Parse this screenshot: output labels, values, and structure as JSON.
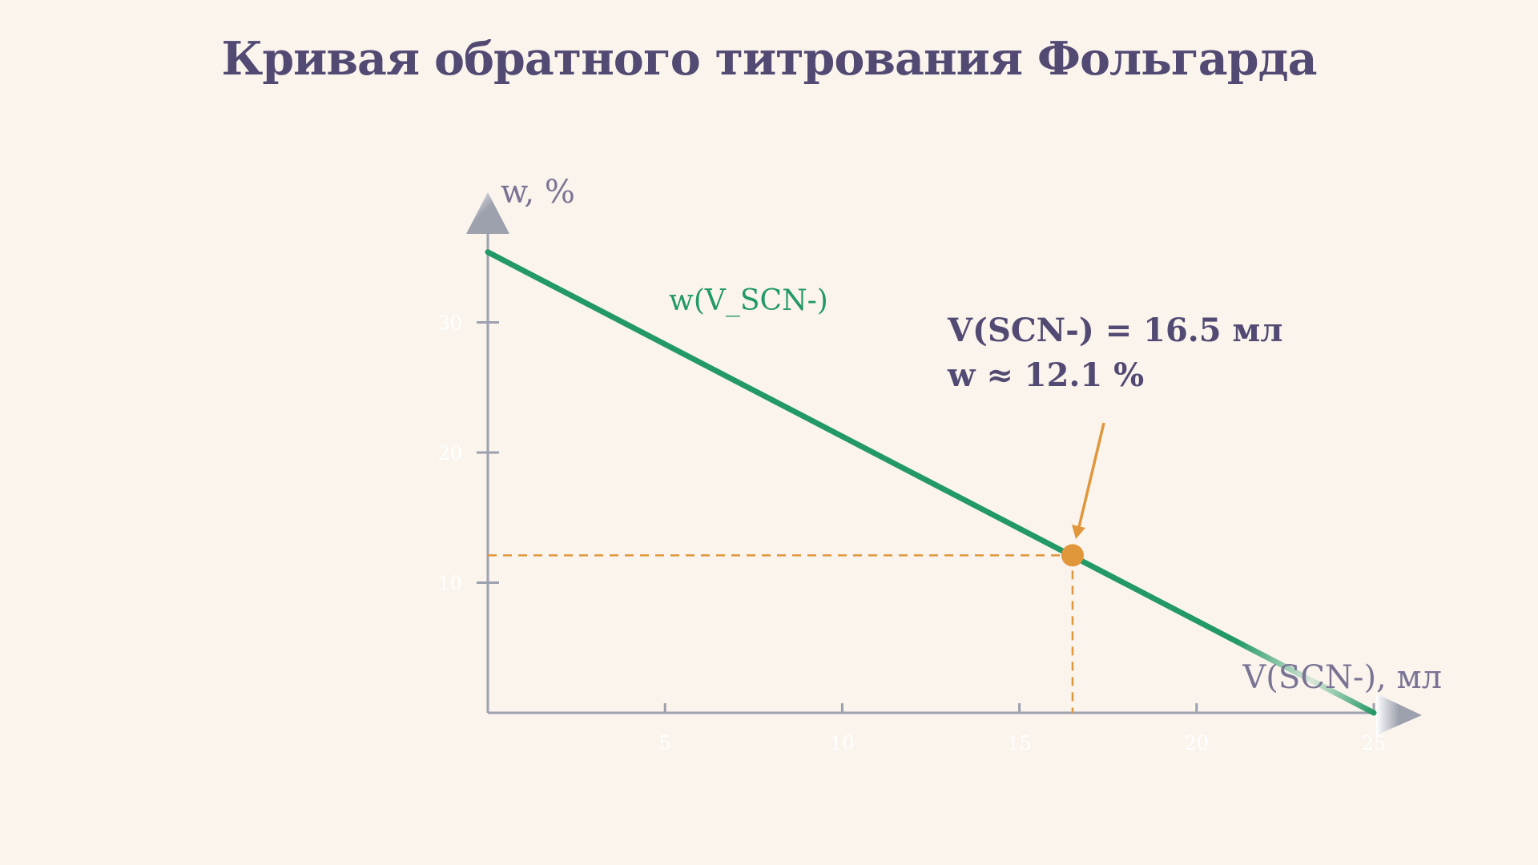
{
  "chart_data": {
    "type": "line",
    "title": "Кривая обратного титрования Фольгарда",
    "xlabel": "V(SCN-), мл",
    "ylabel": "w, %",
    "xlim": [
      0,
      25
    ],
    "ylim": [
      0,
      36
    ],
    "x_ticks": [
      5,
      10,
      15,
      20,
      25
    ],
    "y_ticks": [
      10,
      20,
      30
    ],
    "grid": false,
    "series": [
      {
        "name": "w(V_SCN-)",
        "x": [
          0,
          25
        ],
        "y": [
          35.4,
          0
        ]
      }
    ],
    "highlight_point": {
      "x": 16.5,
      "y": 12.1,
      "label_line1": "V(SCN-) = 16.5 мл",
      "label_line2": "w ≈ 12.1 %"
    }
  },
  "colors": {
    "background": "#faf4ed",
    "title": "#524a73",
    "axis": "#9da0ad",
    "tick_label": "#ffffff",
    "axis_title": "#7a7394",
    "series_line": "#229966",
    "highlight": "#e0963a",
    "callout_text": "#524a73"
  }
}
